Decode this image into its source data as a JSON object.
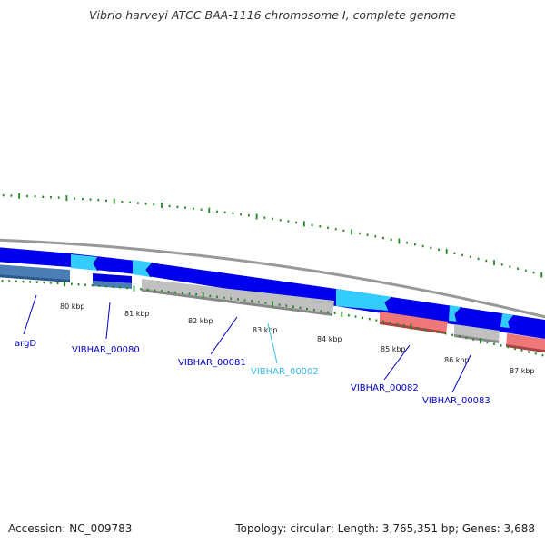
{
  "title": "Vibrio harveyi ATCC BAA-1116 chromosome I, complete genome",
  "footer": {
    "accession": "Accession: NC_009783",
    "summary": "Topology: circular; Length: 3,765,351 bp; Genes: 3,688"
  },
  "scale": {
    "tick_labels": [
      "80 kbp",
      "81 kbp",
      "82 kbp",
      "83 kbp",
      "84 kbp",
      "85 kbp",
      "86 kbp",
      "87 kbp"
    ]
  },
  "genes": [
    {
      "label": "argD",
      "color": "#0000cc"
    },
    {
      "label": "VIBHAR_00080",
      "color": "#0000cc"
    },
    {
      "label": "VIBHAR_00081",
      "color": "#0000cc"
    },
    {
      "label": "VIBHAR_00002",
      "color": "#33bbee"
    },
    {
      "label": "VIBHAR_00082",
      "color": "#0000cc"
    },
    {
      "label": "VIBHAR_00083",
      "color": "#0000cc"
    }
  ],
  "colors": {
    "backbone": "#888888",
    "cds_track": "#0000ee",
    "cds_segment": "#33ccff",
    "gc_skew": "#228822",
    "feature_steelblue": "#4a7eb5",
    "feature_gray": "#c0c0c0",
    "feature_salmon": "#ee7777"
  }
}
